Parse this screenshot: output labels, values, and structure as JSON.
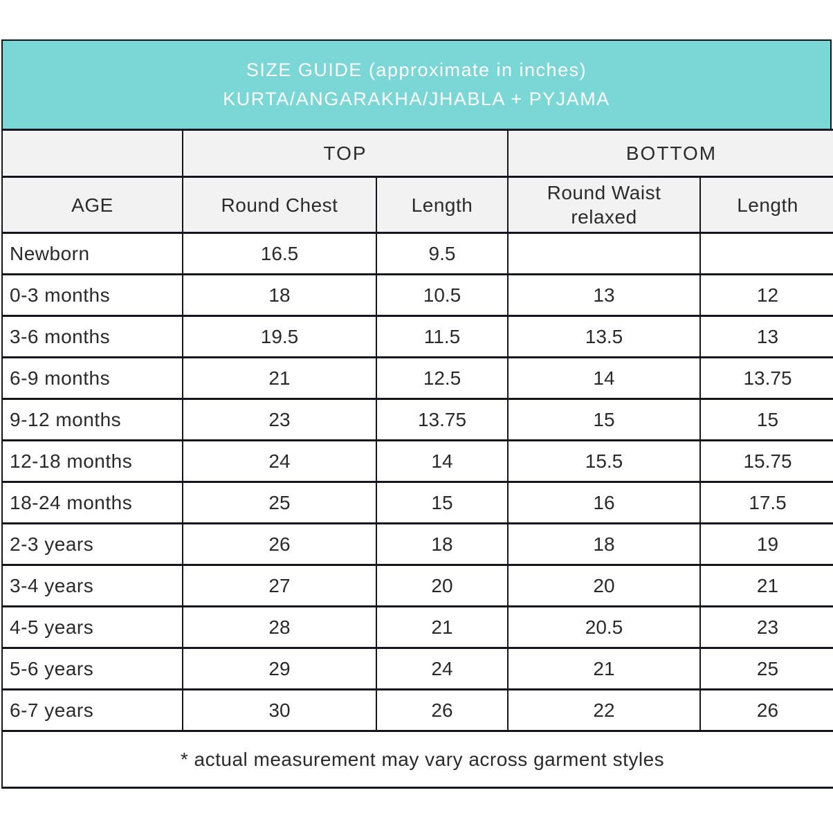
{
  "colors": {
    "banner_bg": "#7ad7d6",
    "banner_text": "#ffffff",
    "header_row_bg": "#f2f2f2",
    "border": "#15151d",
    "body_text": "#2a2a2a"
  },
  "chart_data": {
    "type": "table",
    "title": "SIZE GUIDE (approximate in inches)",
    "subtitle": "KURTA/ANGARAKHA/JHABLA + PYJAMA",
    "group_headers": [
      {
        "label": "",
        "colspan": 1
      },
      {
        "label": "TOP",
        "colspan": 2
      },
      {
        "label": "BOTTOM",
        "colspan": 2
      }
    ],
    "columns": [
      "AGE",
      "Round Chest",
      "Length",
      "Round Waist relaxed",
      "Length"
    ],
    "rows": [
      [
        "Newborn",
        "16.5",
        "9.5",
        "",
        ""
      ],
      [
        "0-3 months",
        "18",
        "10.5",
        "13",
        "12"
      ],
      [
        "3-6 months",
        "19.5",
        "11.5",
        "13.5",
        "13"
      ],
      [
        "6-9 months",
        "21",
        "12.5",
        "14",
        "13.75"
      ],
      [
        "9-12 months",
        "23",
        "13.75",
        "15",
        "15"
      ],
      [
        "12-18 months",
        "24",
        "14",
        "15.5",
        "15.75"
      ],
      [
        "18-24 months",
        "25",
        "15",
        "16",
        "17.5"
      ],
      [
        "2-3 years",
        "26",
        "18",
        "18",
        "19"
      ],
      [
        "3-4 years",
        "27",
        "20",
        "20",
        "21"
      ],
      [
        "4-5 years",
        "28",
        "21",
        "20.5",
        "23"
      ],
      [
        "5-6 years",
        "29",
        "24",
        "21",
        "25"
      ],
      [
        "6-7 years",
        "30",
        "26",
        "22",
        "26"
      ]
    ],
    "footnote": "* actual measurement may vary across garment styles"
  }
}
